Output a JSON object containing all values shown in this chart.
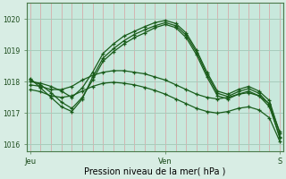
{
  "background_color": "#d8ede4",
  "plot_bg_color": "#c8e8dc",
  "grid_color_v": "#d8a0a0",
  "grid_color_h": "#a8ccbc",
  "line_color": "#1a5c1a",
  "xlabel": "Pression niveau de la mer( hPa )",
  "ylim": [
    1015.8,
    1020.5
  ],
  "yticks": [
    1016,
    1017,
    1018,
    1019,
    1020
  ],
  "xtick_labels": [
    "Jeu",
    "Ven",
    "S"
  ],
  "xtick_pos": [
    0,
    13,
    24
  ],
  "n_points": 25,
  "series": [
    [
      1018.0,
      1017.95,
      1017.85,
      1017.7,
      1017.5,
      1017.8,
      1018.3,
      1018.9,
      1019.2,
      1019.45,
      1019.6,
      1019.75,
      1019.88,
      1019.95,
      1019.85,
      1019.55,
      1019.0,
      1018.3,
      1017.7,
      1017.6,
      1017.75,
      1017.85,
      1017.7,
      1017.4,
      1016.35
    ],
    [
      1018.05,
      1017.9,
      1017.65,
      1017.35,
      1017.15,
      1017.5,
      1018.05,
      1018.65,
      1018.95,
      1019.2,
      1019.4,
      1019.55,
      1019.72,
      1019.82,
      1019.72,
      1019.4,
      1018.85,
      1018.15,
      1017.55,
      1017.45,
      1017.6,
      1017.7,
      1017.55,
      1017.2,
      1016.25
    ],
    [
      1018.1,
      1017.8,
      1017.5,
      1017.2,
      1017.05,
      1017.45,
      1018.15,
      1018.75,
      1019.05,
      1019.3,
      1019.5,
      1019.65,
      1019.78,
      1019.88,
      1019.78,
      1019.48,
      1018.93,
      1018.23,
      1017.63,
      1017.53,
      1017.68,
      1017.78,
      1017.63,
      1017.28,
      1016.2
    ],
    [
      1017.9,
      1017.85,
      1017.75,
      1017.75,
      1017.85,
      1018.05,
      1018.2,
      1018.3,
      1018.35,
      1018.35,
      1018.3,
      1018.25,
      1018.15,
      1018.05,
      1017.9,
      1017.75,
      1017.6,
      1017.5,
      1017.45,
      1017.5,
      1017.6,
      1017.65,
      1017.55,
      1017.3,
      1016.4
    ],
    [
      1017.75,
      1017.68,
      1017.55,
      1017.5,
      1017.55,
      1017.7,
      1017.85,
      1017.95,
      1017.98,
      1017.95,
      1017.9,
      1017.82,
      1017.72,
      1017.6,
      1017.45,
      1017.3,
      1017.15,
      1017.05,
      1017.0,
      1017.05,
      1017.15,
      1017.2,
      1017.1,
      1016.85,
      1016.1
    ]
  ]
}
